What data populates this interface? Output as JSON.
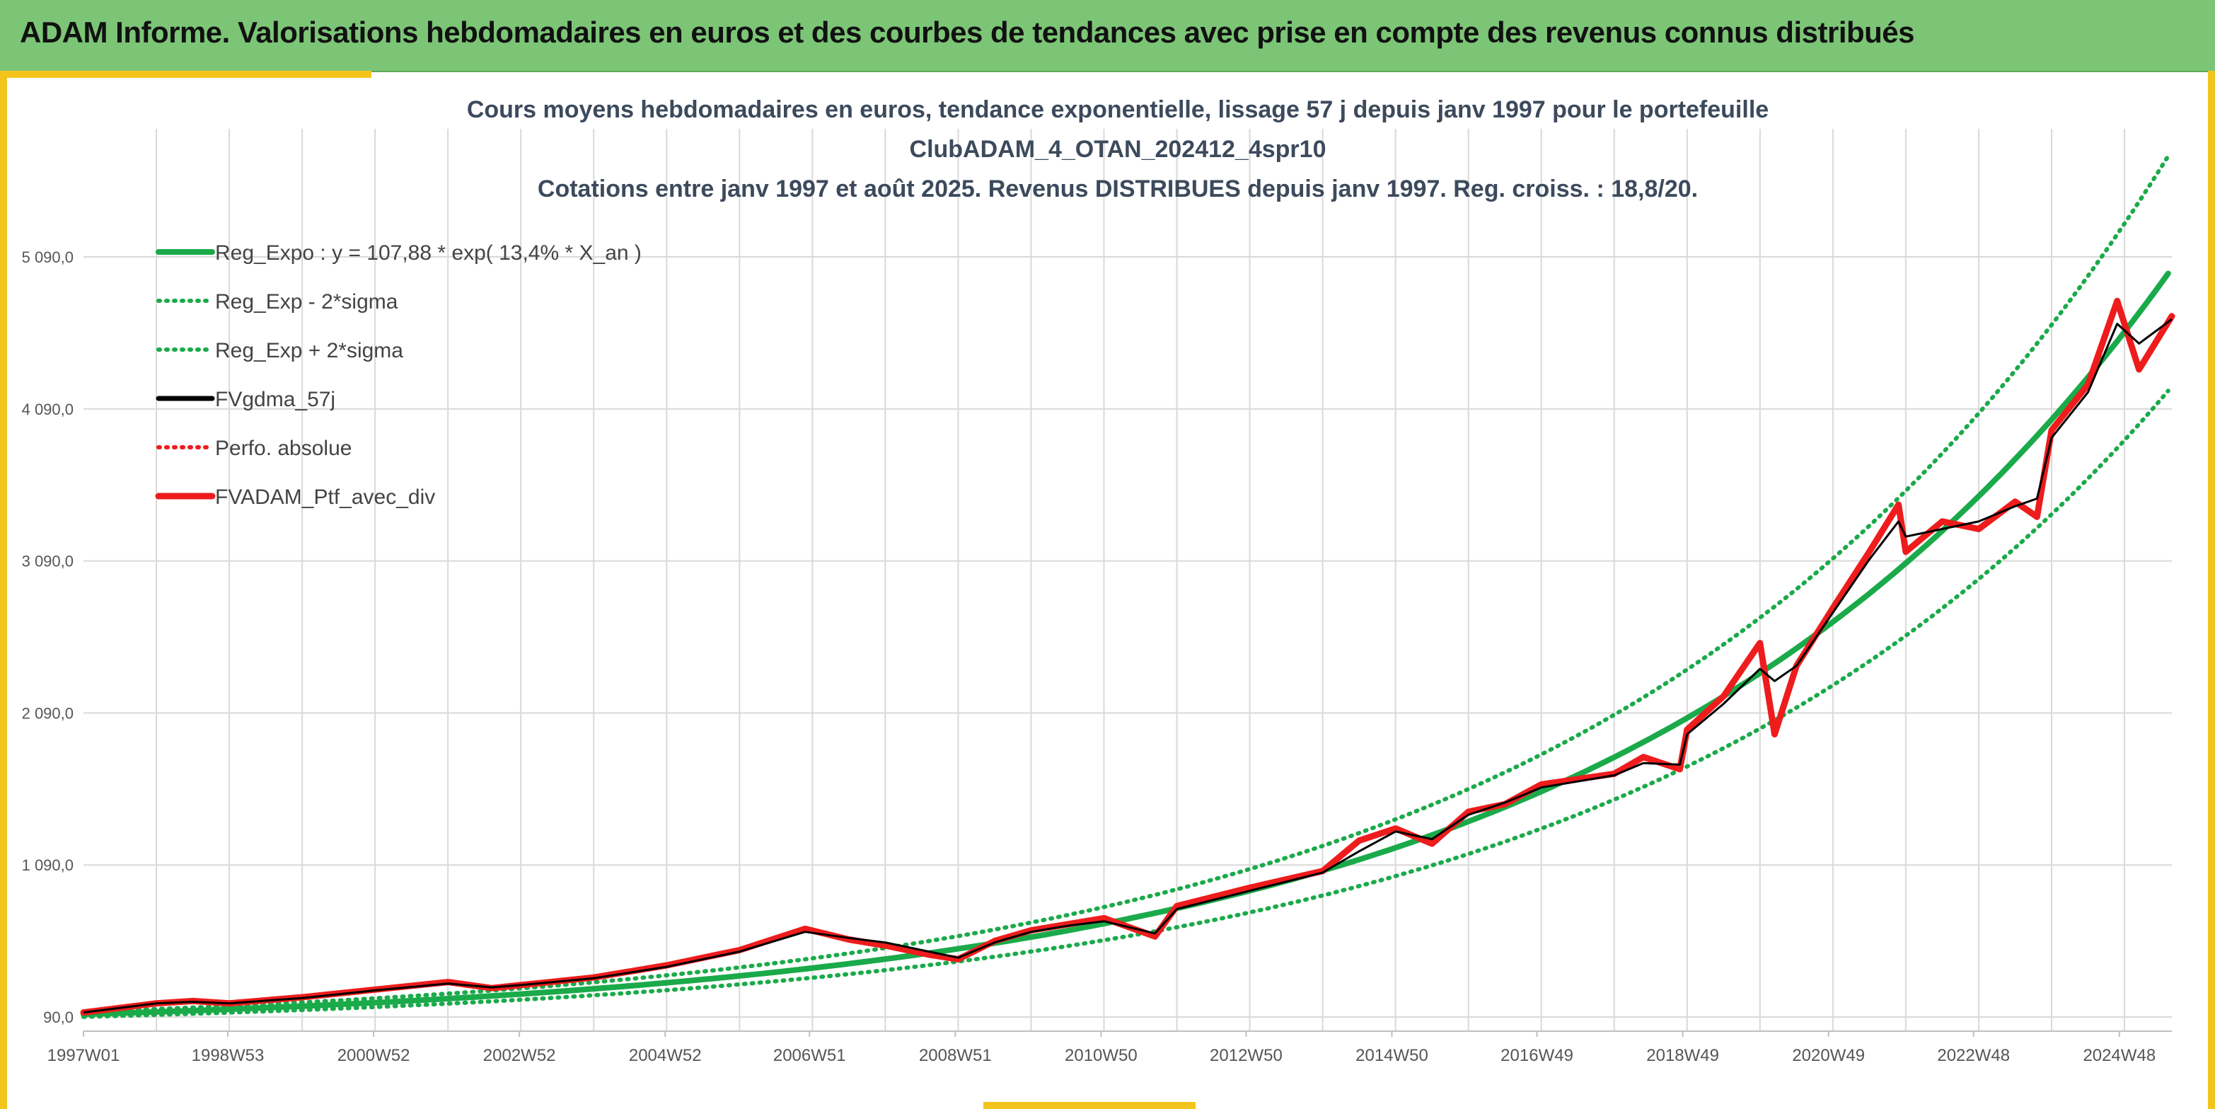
{
  "header": {
    "title": "ADAM Informe. Valorisations hebdomadaires en euros et des courbes de tendances avec prise en compte des revenus connus distribués"
  },
  "colors": {
    "header_bg": "#7cc576",
    "frame_accent": "#f3c41c",
    "regression": "#1aaa4a",
    "sigma_bands": "#1aaa4a",
    "moving_average": "#000000",
    "portfolio": "#ee1c1c",
    "title_text": "#3c4a5c"
  },
  "chart_data": {
    "type": "line",
    "title_lines": [
      "Cours moyens hebdomadaires en euros, tendance exponentielle, lissage 57 j depuis janv 1997 pour le portefeuille",
      "ClubADAM_4_OTAN_202412_4spr10",
      "Cotations entre janv 1997 et août 2025. Revenus DISTRIBUES depuis janv 1997. Reg. croiss. : 18,8/20."
    ],
    "x_range": [
      1997.0,
      2025.65
    ],
    "ylim": [
      90,
      5090
    ],
    "y_ticks": [
      90,
      1090,
      2090,
      3090,
      4090,
      5090
    ],
    "y_tick_labels": [
      "90,0",
      "1 090,0",
      "2 090,0",
      "3 090,0",
      "4 090,0",
      "5 090,0"
    ],
    "x_ticks": [
      1997.0,
      1998.98,
      2000.98,
      2002.98,
      2004.98,
      2006.96,
      2008.96,
      2010.96,
      2012.95,
      2014.95,
      2016.94,
      2018.94,
      2020.94,
      2022.93,
      2024.93
    ],
    "x_tick_labels": [
      "1997W01",
      "1998W53",
      "2000W52",
      "2002W52",
      "2004W52",
      "2006W51",
      "2008W51",
      "2010W50",
      "2012W50",
      "2014W50",
      "2016W49",
      "2018W49",
      "2020W49",
      "2022W48",
      "2024W48"
    ],
    "grid": "both",
    "legend_position": "top-left",
    "regression": {
      "name": "Reg_Expo : y = 107,88 * exp( 13,4% *  X_an )",
      "a": 107.88,
      "rate": 0.134,
      "sigma_factor": 0.155
    },
    "series": [
      {
        "name": "Reg_Expo : y = 107,88 * exp( 13,4% *  X_an )",
        "style": "solid-thick",
        "color": "#1aaa4a"
      },
      {
        "name": "Reg_Exp - 2*sigma",
        "style": "dotted",
        "color": "#1aaa4a"
      },
      {
        "name": "Reg_Exp + 2*sigma",
        "style": "dotted",
        "color": "#1aaa4a"
      },
      {
        "name": "FVgdma_57j",
        "style": "solid",
        "color": "#000000",
        "x": [
          1997.0,
          1998.0,
          1998.5,
          1999.0,
          2000.0,
          2001.0,
          2002.0,
          2002.6,
          2003.0,
          2004.0,
          2005.0,
          2006.0,
          2006.9,
          2007.5,
          2008.0,
          2008.6,
          2009.0,
          2009.5,
          2010.0,
          2010.5,
          2011.0,
          2011.7,
          2012.0,
          2013.0,
          2014.0,
          2014.5,
          2015.0,
          2015.5,
          2016.0,
          2016.5,
          2017.0,
          2018.0,
          2018.4,
          2018.9,
          2019.0,
          2019.5,
          2020.0,
          2020.2,
          2020.5,
          2021.0,
          2021.5,
          2021.9,
          2022.0,
          2022.5,
          2023.0,
          2023.5,
          2023.8,
          2024.0,
          2024.5,
          2024.9,
          2025.2,
          2025.65
        ],
        "y": [
          120,
          180,
          190,
          180,
          215,
          265,
          310,
          285,
          300,
          345,
          420,
          520,
          650,
          610,
          580,
          520,
          480,
          580,
          650,
          690,
          720,
          640,
          800,
          920,
          1040,
          1180,
          1310,
          1260,
          1420,
          1500,
          1600,
          1680,
          1760,
          1750,
          1950,
          2150,
          2380,
          2300,
          2400,
          2750,
          3100,
          3350,
          3250,
          3300,
          3350,
          3450,
          3500,
          3900,
          4200,
          4650,
          4520,
          4680
        ]
      },
      {
        "name": "Perfo. absolue",
        "style": "dotted",
        "color": "#ee1c1c"
      },
      {
        "name": "FVADAM_Ptf_avec_div",
        "style": "solid-thick",
        "color": "#ee1c1c",
        "x": [
          1997.0,
          1998.0,
          1998.5,
          1999.0,
          2000.0,
          2001.0,
          2002.0,
          2002.6,
          2003.0,
          2004.0,
          2005.0,
          2006.0,
          2006.9,
          2007.5,
          2008.0,
          2008.6,
          2009.0,
          2009.5,
          2010.0,
          2010.5,
          2011.0,
          2011.7,
          2012.0,
          2013.0,
          2014.0,
          2014.5,
          2015.0,
          2015.5,
          2016.0,
          2016.5,
          2017.0,
          2018.0,
          2018.4,
          2018.9,
          2019.0,
          2019.5,
          2020.0,
          2020.2,
          2020.5,
          2021.0,
          2021.5,
          2021.9,
          2022.0,
          2022.5,
          2023.0,
          2023.5,
          2023.8,
          2024.0,
          2024.5,
          2024.9,
          2025.2,
          2025.65
        ],
        "y": [
          120,
          180,
          195,
          180,
          220,
          270,
          320,
          280,
          300,
          350,
          430,
          530,
          670,
          600,
          560,
          500,
          470,
          590,
          660,
          700,
          740,
          620,
          820,
          940,
          1050,
          1250,
          1330,
          1230,
          1440,
          1490,
          1620,
          1690,
          1800,
          1720,
          1980,
          2200,
          2550,
          1950,
          2400,
          2780,
          3150,
          3460,
          3150,
          3350,
          3300,
          3480,
          3380,
          3950,
          4250,
          4800,
          4350,
          4700
        ]
      }
    ]
  }
}
